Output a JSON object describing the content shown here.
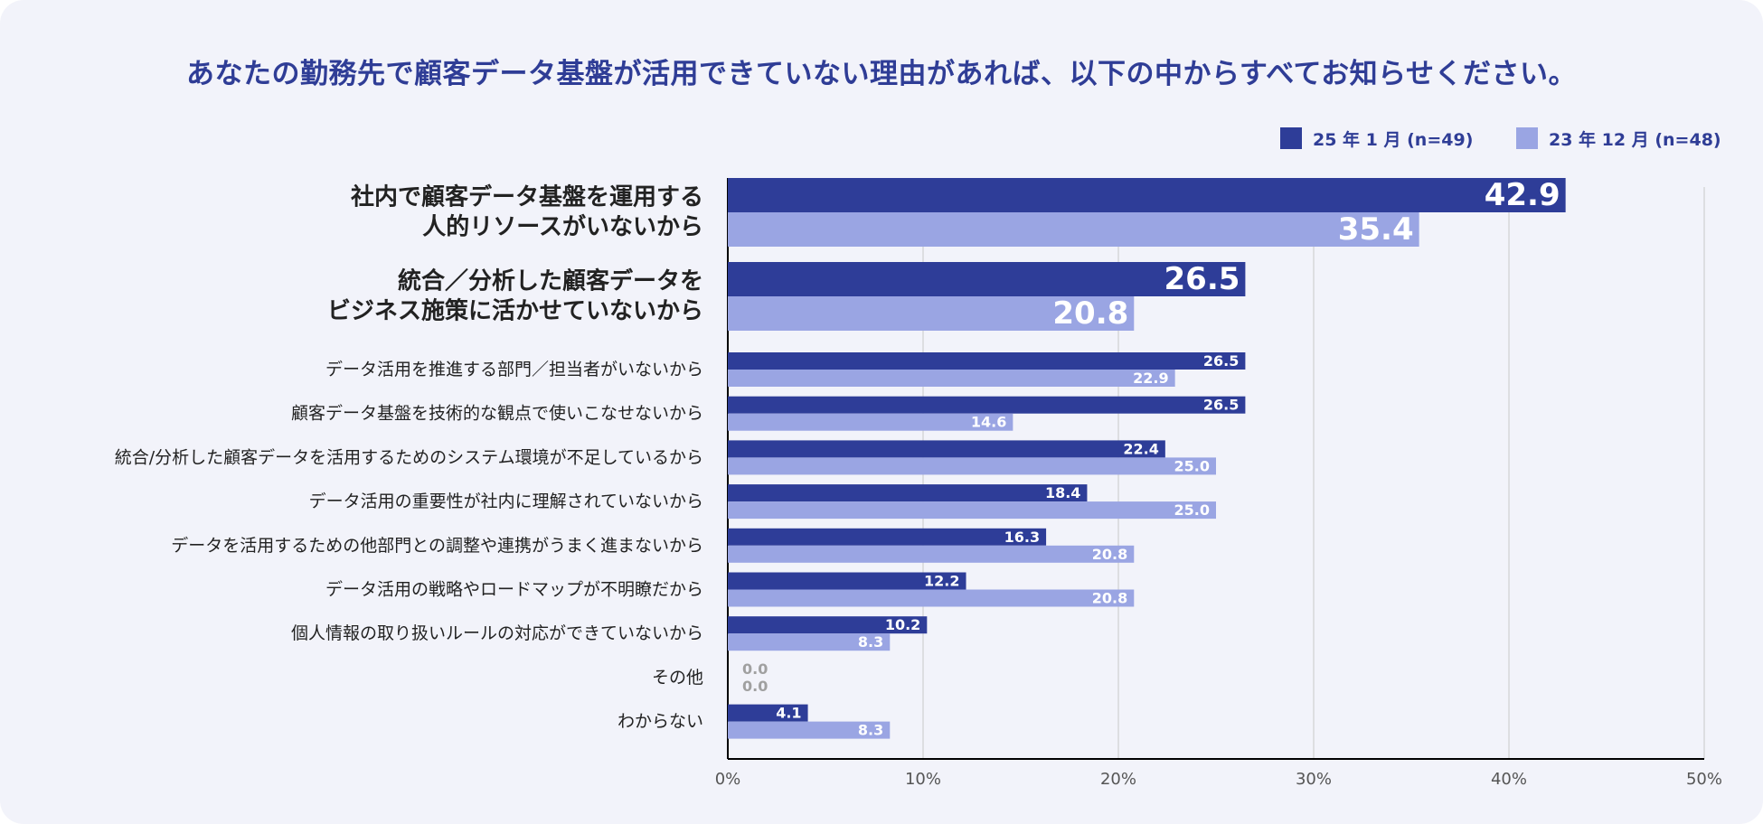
{
  "colors": {
    "background": "#f2f3fa",
    "title": "#2f3d96",
    "series_2025": "#2e3d98",
    "series_2023": "#9aa5e3",
    "zero_label": "#a0a0a0",
    "grid": "#c8c8c8",
    "axis": "#000000",
    "category_text": "#222222"
  },
  "chart_data": {
    "type": "bar",
    "orientation": "horizontal",
    "title": "あなたの勤務先で顧客データ基盤が活用できていない理由があれば、以下の中からすべてお知らせください。",
    "categories": [
      [
        "社内で顧客データ基盤を運用する",
        "人的リソースがいないから"
      ],
      [
        "統合／分析した顧客データを",
        "ビジネス施策に活かせていないから"
      ],
      [
        "データ活用を推進する部門／担当者がいないから"
      ],
      [
        "顧客データ基盤を技術的な観点で使いこなせないから"
      ],
      [
        "統合/分析した顧客データを活用するためのシステム環境が不足しているから"
      ],
      [
        "データ活用の重要性が社内に理解されていないから"
      ],
      [
        "データを活用するための他部門との調整や連携がうまく進まないから"
      ],
      [
        "データ活用の戦略やロードマップが不明瞭だから"
      ],
      [
        "個人情報の取り扱いルールの対応ができていないから"
      ],
      [
        "その他"
      ],
      [
        "わからない"
      ]
    ],
    "highlighted_count": 2,
    "series": [
      {
        "name": "25 年 1 月 (n=49)",
        "values": [
          42.9,
          26.5,
          26.5,
          26.5,
          22.4,
          18.4,
          16.3,
          12.2,
          10.2,
          0.0,
          4.1
        ]
      },
      {
        "name": "23 年 12 月 (n=48)",
        "values": [
          35.4,
          20.8,
          22.9,
          14.6,
          25.0,
          25.0,
          20.8,
          20.8,
          8.3,
          0.0,
          8.3
        ]
      }
    ],
    "xlim": [
      0,
      50
    ],
    "xticks": [
      0,
      10,
      20,
      30,
      40,
      50
    ],
    "tick_suffix": "%",
    "legend_position": "top-right",
    "grid": true
  }
}
